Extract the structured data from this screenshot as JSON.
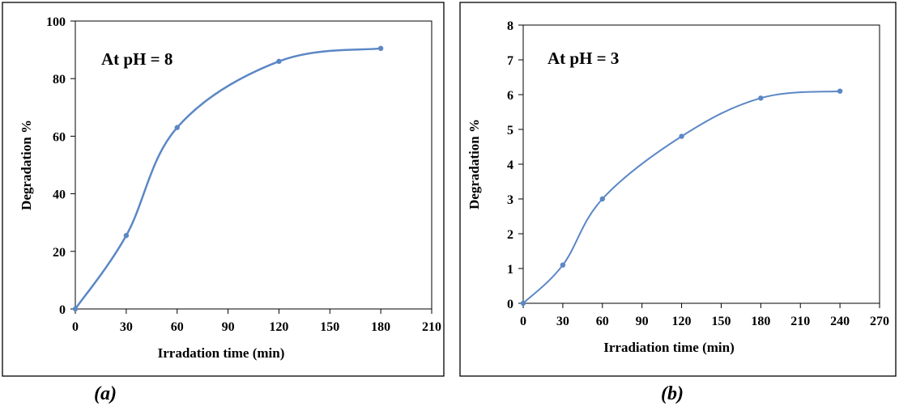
{
  "chart_data": [
    {
      "type": "line",
      "panel_label": "(a)",
      "annotation": "At pH = 8",
      "xlabel": "Irradation time (min)",
      "ylabel": "Degradation %",
      "xlim": [
        0,
        210
      ],
      "ylim": [
        0,
        100
      ],
      "x_ticks": [
        "0",
        "30",
        "60",
        "90",
        "120",
        "150",
        "180",
        "210"
      ],
      "y_ticks": [
        "0",
        "20",
        "40",
        "60",
        "80",
        "100"
      ],
      "grid": false,
      "line_color": "#5B87C5",
      "series": [
        {
          "x": [
            0,
            30,
            60,
            120,
            180
          ],
          "values": [
            0,
            25.5,
            63,
            86,
            90.5
          ]
        }
      ]
    },
    {
      "type": "line",
      "panel_label": "(b)",
      "annotation": "At  pH = 3",
      "xlabel": "Irradiation  time (min)",
      "ylabel": "Degradation %",
      "xlim": [
        0,
        270
      ],
      "ylim": [
        0,
        8
      ],
      "x_ticks": [
        "0",
        "30",
        "60",
        "90",
        "120",
        "150",
        "180",
        "210",
        "240",
        "270"
      ],
      "y_ticks": [
        "0",
        "1",
        "2",
        "3",
        "4",
        "5",
        "6",
        "7",
        "8"
      ],
      "grid": false,
      "line_color": "#5B87C5",
      "series": [
        {
          "x": [
            0,
            30,
            60,
            120,
            180,
            240
          ],
          "values": [
            0,
            1.1,
            3,
            4.8,
            5.9,
            6.1
          ]
        }
      ]
    }
  ]
}
